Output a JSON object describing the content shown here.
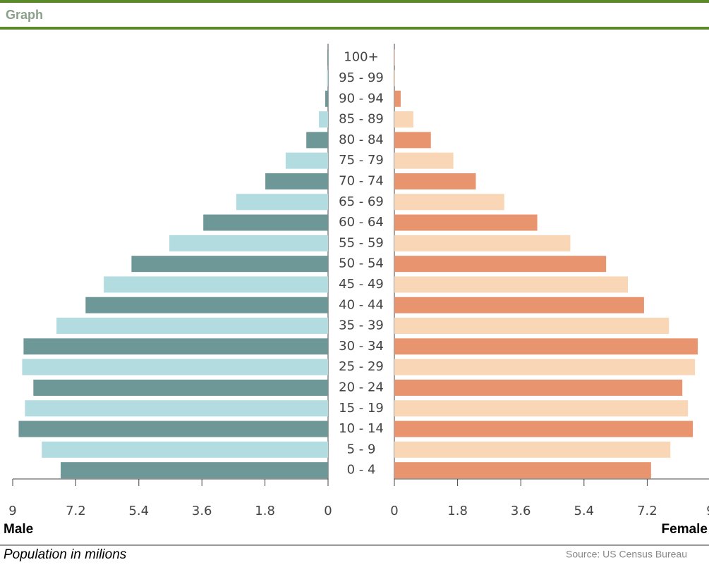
{
  "chart_data": {
    "type": "pyramid",
    "title": "Graph",
    "x_label": "Population in milions",
    "source": "Source: US Census Bureau",
    "categories": [
      "100+",
      "95 - 99",
      "90 - 94",
      "85 - 89",
      "80 - 84",
      "75 - 79",
      "70 - 74",
      "65 - 69",
      "60 - 64",
      "55 - 59",
      "50 - 54",
      "45 - 49",
      "40 - 44",
      "35 - 39",
      "30 - 34",
      "25 - 29",
      "20 - 24",
      "15 - 19",
      "10 - 14",
      "5 - 9",
      "0 - 4"
    ],
    "series": [
      {
        "name": "Male",
        "colors": [
          "#6e9797",
          "#b3dce1"
        ],
        "xlim": [
          9,
          0
        ],
        "xticks": [
          9,
          7.2,
          5.4,
          3.6,
          1.8,
          0
        ],
        "values": [
          0.02,
          0.03,
          0.08,
          0.26,
          0.62,
          1.21,
          1.79,
          2.62,
          3.56,
          4.53,
          5.61,
          6.4,
          6.92,
          7.75,
          8.69,
          8.73,
          8.41,
          8.65,
          8.83,
          8.17,
          7.63
        ]
      },
      {
        "name": "Female",
        "colors": [
          "#e8956f",
          "#f9d6b6"
        ],
        "xlim": [
          0,
          9
        ],
        "xticks": [
          0,
          1.8,
          3.6,
          5.4,
          7.2,
          9
        ],
        "values": [
          0.01,
          0.02,
          0.18,
          0.54,
          1.04,
          1.68,
          2.32,
          3.13,
          4.07,
          5.01,
          6.03,
          6.65,
          7.11,
          7.82,
          8.64,
          8.56,
          8.2,
          8.36,
          8.5,
          7.86,
          7.31
        ]
      }
    ]
  }
}
